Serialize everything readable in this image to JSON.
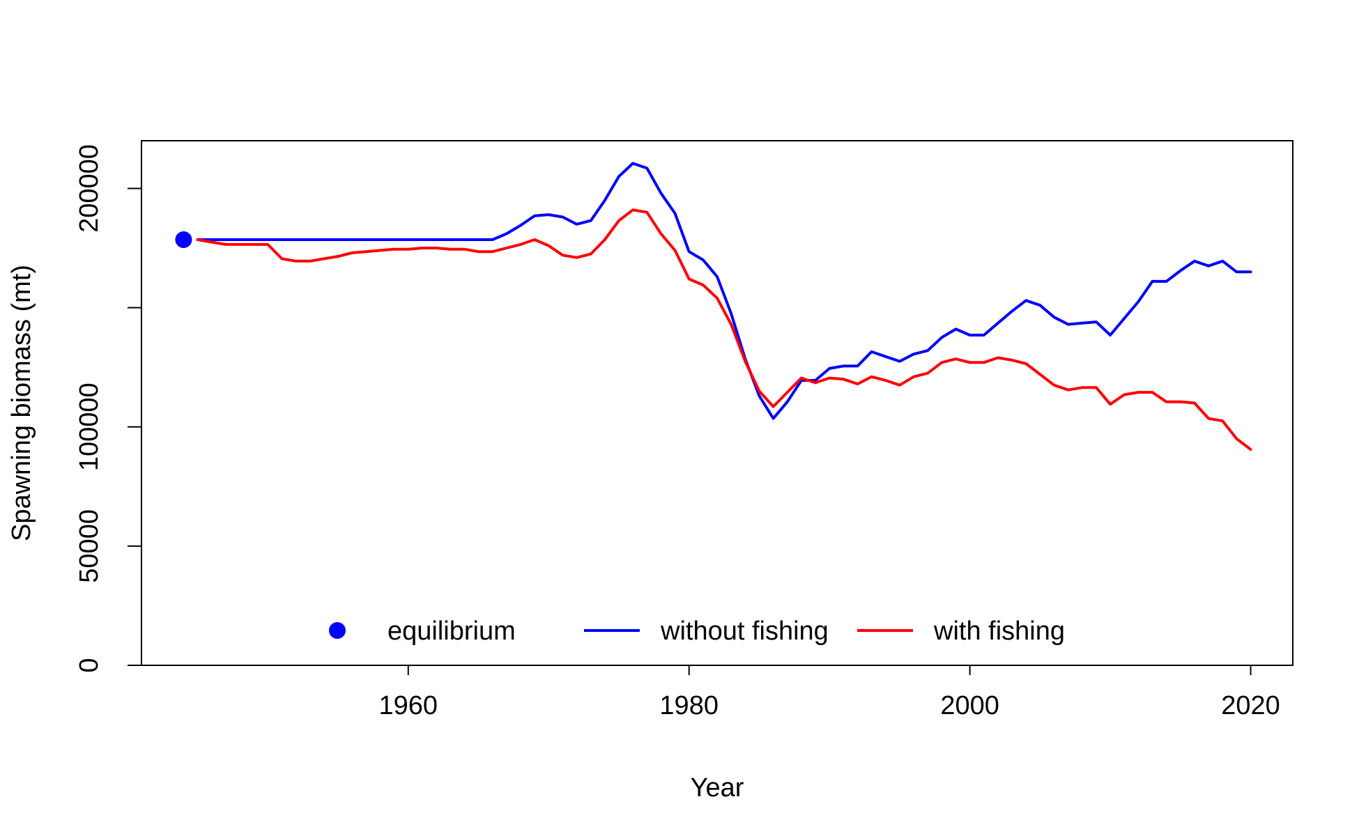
{
  "chart_data": {
    "type": "line",
    "title": "",
    "xlabel": "Year",
    "ylabel": "Spawning biomass (mt)",
    "xlim": [
      1941,
      2023
    ],
    "ylim": [
      0,
      220000
    ],
    "x_ticks": [
      1960,
      1980,
      2000,
      2020
    ],
    "x_tick_labels": [
      "1960",
      "1980",
      "2000",
      "2020"
    ],
    "y_ticks": [
      0,
      50000,
      100000,
      150000,
      200000
    ],
    "y_tick_labels": [
      "0",
      "50000",
      "100000",
      "",
      "200000"
    ],
    "grid": false,
    "legend_position": "bottom",
    "equilibrium": {
      "name": "equilibrium",
      "x": 1944,
      "y": 178500,
      "color": "#0000ff"
    },
    "series": [
      {
        "name": "without fishing",
        "color": "#0000ff",
        "x": [
          1945,
          1946,
          1947,
          1948,
          1949,
          1950,
          1951,
          1952,
          1953,
          1954,
          1955,
          1956,
          1957,
          1958,
          1959,
          1960,
          1961,
          1962,
          1963,
          1964,
          1965,
          1966,
          1967,
          1968,
          1969,
          1970,
          1971,
          1972,
          1973,
          1974,
          1975,
          1976,
          1977,
          1978,
          1979,
          1980,
          1981,
          1982,
          1983,
          1984,
          1985,
          1986,
          1987,
          1988,
          1989,
          1990,
          1991,
          1992,
          1993,
          1994,
          1995,
          1996,
          1997,
          1998,
          1999,
          2000,
          2001,
          2002,
          2003,
          2004,
          2005,
          2006,
          2007,
          2008,
          2009,
          2010,
          2011,
          2012,
          2013,
          2014,
          2015,
          2016,
          2017,
          2018,
          2019,
          2020
        ],
        "y": [
          178500,
          178500,
          178500,
          178500,
          178500,
          178500,
          178500,
          178500,
          178500,
          178500,
          178500,
          178500,
          178500,
          178500,
          178500,
          178500,
          178500,
          178500,
          178500,
          178500,
          178500,
          178500,
          181000,
          184500,
          188500,
          189000,
          188000,
          185000,
          186500,
          195000,
          205000,
          210500,
          208500,
          198000,
          189500,
          173500,
          170000,
          163000,
          147500,
          128500,
          113000,
          103500,
          110500,
          119500,
          119500,
          124500,
          125500,
          125500,
          131500,
          129500,
          127500,
          130500,
          132000,
          137500,
          141000,
          138500,
          138500,
          143500,
          148500,
          153000,
          151000,
          146000,
          143000,
          143500,
          144000,
          138500,
          145500,
          152500,
          161000,
          161000,
          165500,
          169500,
          167500,
          169500,
          165000,
          165000
        ]
      },
      {
        "name": "with fishing",
        "color": "#ff0000",
        "x": [
          1945,
          1946,
          1947,
          1948,
          1949,
          1950,
          1951,
          1952,
          1953,
          1954,
          1955,
          1956,
          1957,
          1958,
          1959,
          1960,
          1961,
          1962,
          1963,
          1964,
          1965,
          1966,
          1967,
          1968,
          1969,
          1970,
          1971,
          1972,
          1973,
          1974,
          1975,
          1976,
          1977,
          1978,
          1979,
          1980,
          1981,
          1982,
          1983,
          1984,
          1985,
          1986,
          1987,
          1988,
          1989,
          1990,
          1991,
          1992,
          1993,
          1994,
          1995,
          1996,
          1997,
          1998,
          1999,
          2000,
          2001,
          2002,
          2003,
          2004,
          2005,
          2006,
          2007,
          2008,
          2009,
          2010,
          2011,
          2012,
          2013,
          2014,
          2015,
          2016,
          2017,
          2018,
          2019,
          2020
        ],
        "y": [
          178500,
          177500,
          176500,
          176500,
          176500,
          176500,
          170500,
          169500,
          169500,
          170500,
          171500,
          173000,
          173500,
          174000,
          174500,
          174500,
          175000,
          175000,
          174500,
          174500,
          173500,
          173500,
          175000,
          176500,
          178500,
          176000,
          172000,
          171000,
          172500,
          178500,
          186500,
          191000,
          190000,
          181000,
          174000,
          162000,
          159500,
          154000,
          143000,
          127500,
          115000,
          108500,
          114500,
          120500,
          118500,
          120500,
          120000,
          118000,
          121000,
          119500,
          117500,
          121000,
          122500,
          127000,
          128500,
          127000,
          127000,
          129000,
          128000,
          126500,
          122000,
          117500,
          115500,
          116500,
          116500,
          109500,
          113500,
          114500,
          114500,
          110500,
          110500,
          110000,
          103500,
          102500,
          95000,
          90500
        ]
      }
    ]
  }
}
